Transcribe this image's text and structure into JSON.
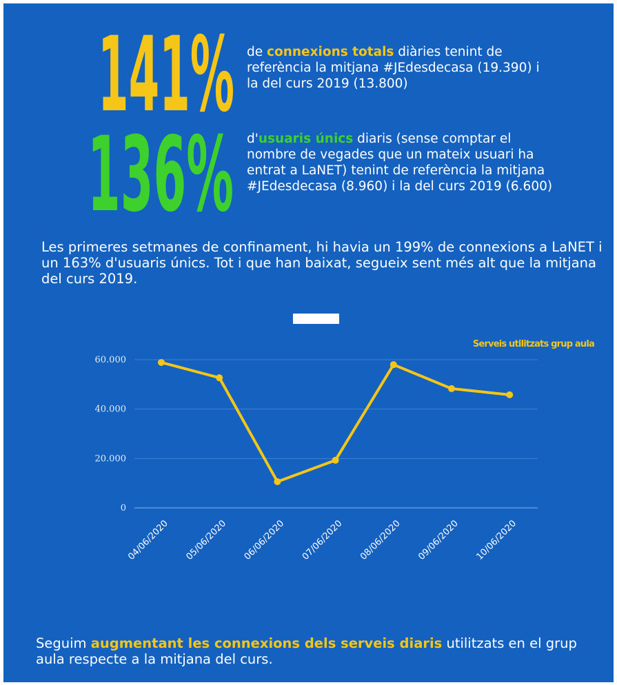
{
  "stats": [
    {
      "figure": "141%",
      "parts": [
        "de ",
        "connexions totals",
        " diàries tenint de referència la mitjana #JEdesdecasa (19.390) i la del curs 2019 (13.800)"
      ]
    },
    {
      "figure": "136%",
      "parts": [
        "d'",
        "usuaris únics",
        " diaris (sense comptar el nombre de vegades que un mateix usuari ha entrat a LaNET)  tenint de referència la mitjana #JEdesdecasa (8.960) i la del curs 2019 (6.600)"
      ]
    }
  ],
  "intro": "Les primeres setmanes de confinament, hi havia un 199% de connexions a LaNET i un 163% d'usuaris únics. Tot i que han baixat, segueix sent més alt que la mitjana del curs 2019.",
  "footer": [
    "Seguim ",
    "augmentant les connexions dels serveis diaris",
    " utilitzats en el grup aula respecte a la mitjana del curs."
  ],
  "chart_data": {
    "type": "line",
    "categories": [
      "04/06/2020",
      "05/06/2020",
      "06/06/2020",
      "07/06/2020",
      "08/06/2020",
      "09/06/2020",
      "10/06/2020"
    ],
    "series": [
      {
        "name": "Serveis utilitzats grup aula",
        "color": "#f5c518",
        "values": [
          58900,
          52700,
          10600,
          19300,
          58000,
          48300,
          45800
        ]
      }
    ],
    "ylim": [
      0,
      60000
    ],
    "yticks": [
      0,
      {
        "value": 20000,
        "label": "20.000"
      },
      {
        "value": 40000,
        "label": "40.000"
      },
      {
        "value": 60000,
        "label": "60.000"
      }
    ],
    "grid": true,
    "legend": "top-right"
  }
}
